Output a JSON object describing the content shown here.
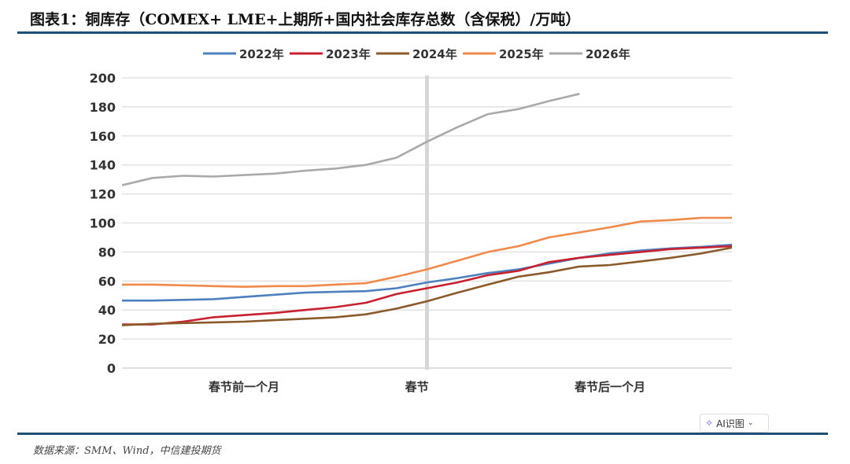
{
  "header": {
    "title": "图表1：铜库存（COMEX+ LME+上期所+国内社会库存总数（含保税）/万吨）"
  },
  "footer": {
    "source": "数据来源：SMM、Wind，中信建投期货",
    "ai_button": "AI识图"
  },
  "chart_data": {
    "type": "line",
    "title": "铜库存（COMEX+ LME+上期所+国内社会库存总数（含保税）/万吨）",
    "xlabel": "",
    "ylabel": "万吨",
    "ylim": [
      0,
      200
    ],
    "yticks": [
      0,
      20,
      40,
      60,
      80,
      100,
      120,
      140,
      160,
      180,
      200
    ],
    "x": [
      -30,
      -27,
      -24,
      -21,
      -18,
      -15,
      -12,
      -9,
      -6,
      -3,
      0,
      3,
      6,
      9,
      12,
      15,
      18,
      21,
      24,
      27,
      30
    ],
    "xlim": [
      -30,
      30
    ],
    "xtick_labels": [
      {
        "x": -18,
        "label": "春节前一个月"
      },
      {
        "x": -1,
        "label": "春节"
      },
      {
        "x": 18,
        "label": "春节后一个月"
      }
    ],
    "spring_festival_x": 0,
    "legend": "top",
    "grid": true,
    "series": [
      {
        "name": "2022年",
        "color": "#4e7fbf",
        "values": [
          46.5,
          46.5,
          47,
          47.5,
          49,
          50.5,
          52,
          52.5,
          53,
          55,
          59,
          62,
          65.5,
          68,
          72,
          76,
          79,
          81,
          82.5,
          83.5,
          85
        ]
      },
      {
        "name": "2023年",
        "color": "#c8202f",
        "values": [
          30,
          30,
          32,
          35,
          36.5,
          38,
          40,
          42,
          45,
          51,
          55,
          59,
          64,
          67,
          73,
          76,
          78,
          80,
          82,
          83,
          84
        ]
      },
      {
        "name": "2024年",
        "color": "#8b5a2b",
        "values": [
          29.5,
          30.5,
          31,
          31.5,
          32,
          33,
          34,
          35,
          37,
          41,
          46,
          52,
          57.5,
          63,
          66,
          70,
          71,
          73.5,
          76,
          79,
          83
        ]
      },
      {
        "name": "2025年",
        "color": "#f08a4b",
        "values": [
          57.5,
          57.5,
          57,
          56.5,
          56,
          56.5,
          56.5,
          57.5,
          58.5,
          63,
          68,
          74,
          80,
          84,
          90,
          93.5,
          97,
          101,
          102,
          103.5,
          103.5
        ]
      },
      {
        "name": "2026年",
        "color": "#a9a9a9",
        "values": [
          126,
          131,
          132.5,
          132,
          133,
          134,
          136,
          137.5,
          140,
          145,
          156,
          166,
          175,
          178.5,
          184,
          189,
          null,
          null,
          null,
          null,
          null
        ]
      }
    ]
  }
}
